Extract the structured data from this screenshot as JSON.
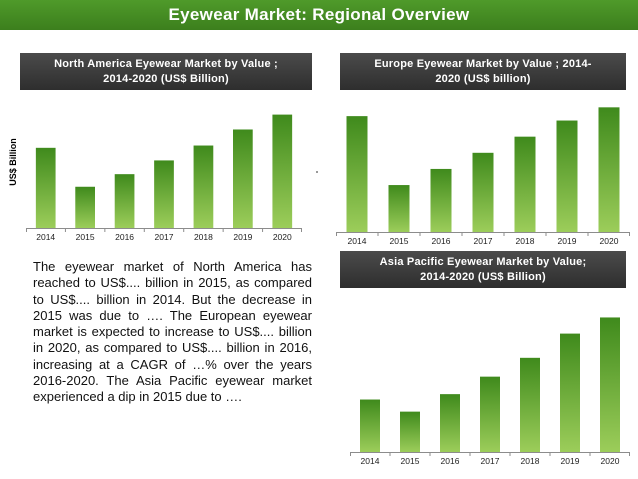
{
  "page_title": "Eyewear Market: Regional Overview",
  "paragraph": "The eyewear market of North America has reached to US$.... billion in 2015, as compared to US$.... billion in 2014. But the decrease in 2015 was due to …. The European eyewear market is expected to increase to US$.... billion in 2020, as compared to US$.... billion in 2016, increasing at a CAGR of …% over the years 2016-2020. The Asia Pacific eyewear market experienced a dip in 2015 due to ….",
  "colors": {
    "banner": "#4a922a",
    "title_bg": "#3a3a3a",
    "bar_top": "#3f8a1c",
    "bar_bottom": "#9ccd5a",
    "axis": "#8c8c8c"
  },
  "chart_data": [
    {
      "id": "na",
      "type": "bar",
      "title_line1": "North America Eyewear Market by Value ;",
      "title_line2": "2014-2020 (US$ Billion)",
      "ylabel": "US$ Billion",
      "xlabel": "",
      "categories": [
        "2014",
        "2015",
        "2016",
        "2017",
        "2018",
        "2019",
        "2020"
      ],
      "values": [
        70,
        36,
        47,
        59,
        72,
        86,
        99
      ],
      "ylim": [
        0,
        110
      ],
      "grid": false
    },
    {
      "id": "eu",
      "type": "bar",
      "title_line1": "Europe Eyewear Market by Value ; 2014-",
      "title_line2": "2020 (US$ billion)",
      "ylabel": "",
      "xlabel": "",
      "categories": [
        "2014",
        "2015",
        "2016",
        "2017",
        "2018",
        "2019",
        "2020"
      ],
      "values": [
        79,
        32,
        43,
        54,
        65,
        76,
        85
      ],
      "ylim": [
        0,
        90
      ],
      "grid": false
    },
    {
      "id": "ap",
      "type": "bar",
      "title_line1": "Asia Pacific Eyewear Market by Value;",
      "title_line2": "2014-2020 (US$ Billion)",
      "ylabel": "",
      "xlabel": "",
      "categories": [
        "2014",
        "2015",
        "2016",
        "2017",
        "2018",
        "2019",
        "2020"
      ],
      "values": [
        39,
        30,
        43,
        56,
        70,
        88,
        100
      ],
      "ylim": [
        0,
        110
      ],
      "grid": false
    }
  ]
}
